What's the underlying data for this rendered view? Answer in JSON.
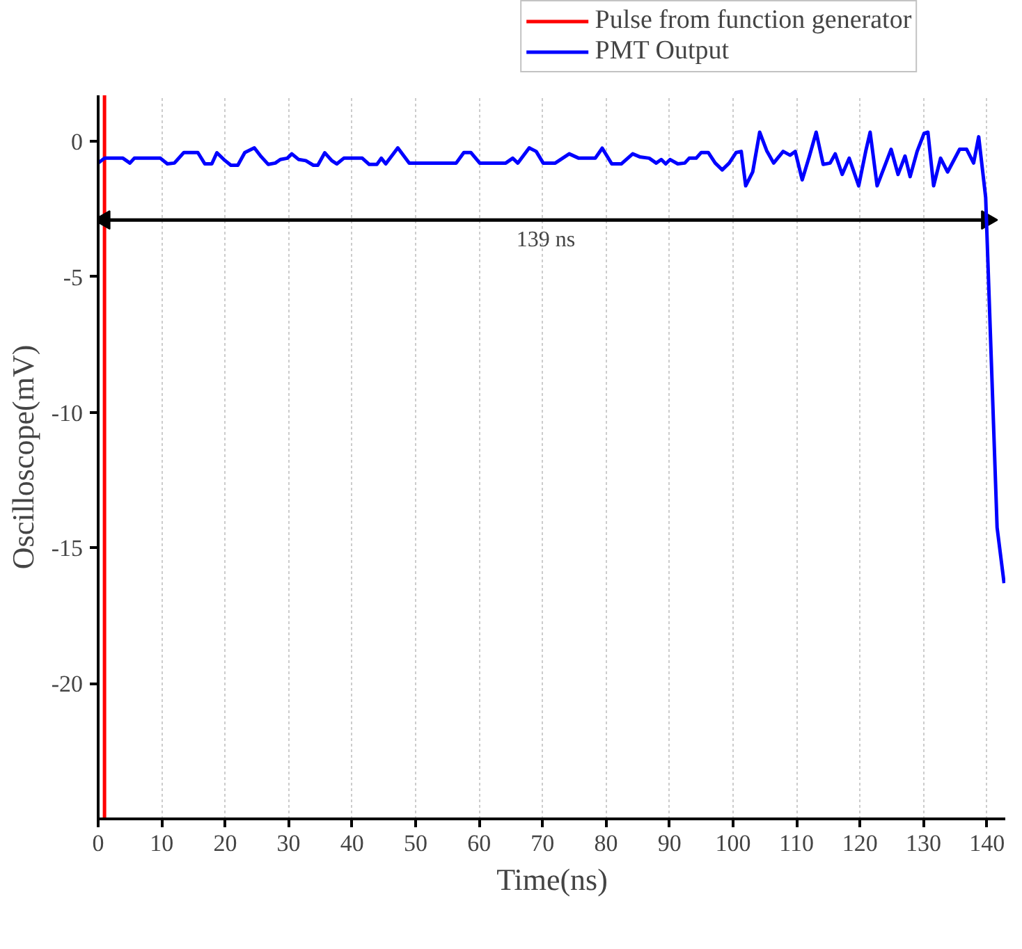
{
  "chart_data": {
    "type": "line",
    "xlabel": "Time(ns)",
    "ylabel": "Oscilloscope(mV)",
    "xlim": [
      0,
      143
    ],
    "ylim": [
      -25,
      1.7
    ],
    "xticks": [
      0,
      10,
      20,
      30,
      40,
      50,
      60,
      70,
      80,
      90,
      100,
      110,
      120,
      130,
      140
    ],
    "yticks": [
      0,
      -5,
      -10,
      -15,
      -20
    ],
    "grid": "x",
    "legend": "top right",
    "line_style": "solid",
    "marker": "none",
    "series": [
      {
        "name": "Pulse from function generator",
        "color": "#ff0000",
        "x": [
          1,
          1
        ],
        "values": [
          -25,
          1.7
        ]
      },
      {
        "color": "#000000",
        "x": [
          1,
          140
        ],
        "values": [
          -2.9,
          -2.9
        ],
        "marker": "triangle"
      },
      {
        "name": "PMT Output",
        "color": "#0000ff",
        "x": [
          0,
          1.0,
          3.9,
          5.0,
          5.7,
          9.8,
          10.9,
          12.0,
          13.5,
          15.7,
          16.8,
          17.9,
          18.7,
          19.8,
          20.9,
          22.0,
          23.1,
          24.6,
          25.7,
          26.8,
          27.9,
          28.7,
          29.8,
          30.5,
          31.6,
          32.7,
          33.9,
          34.6,
          35.7,
          36.8,
          37.6,
          38.7,
          41.6,
          42.7,
          43.9,
          44.6,
          45.3,
          47.2,
          49.0,
          56.4,
          57.6,
          58.7,
          60.1,
          64.2,
          65.3,
          66.1,
          67.9,
          69.0,
          70.1,
          72.0,
          74.2,
          75.7,
          78.3,
          79.4,
          80.9,
          82.4,
          84.2,
          85.3,
          86.8,
          87.9,
          88.7,
          89.4,
          90.1,
          91.3,
          92.4,
          93.1,
          94.2,
          95.0,
          96.1,
          97.2,
          98.3,
          99.4,
          100.5,
          101.3,
          102.0,
          103.1,
          104.2,
          105.3,
          106.4,
          107.9,
          109.0,
          109.8,
          110.9,
          112.0,
          113.1,
          114.2,
          115.3,
          116.1,
          117.2,
          118.3,
          119.8,
          120.9,
          121.6,
          122.7,
          123.8,
          124.9,
          126.0,
          127.1,
          127.9,
          129.0,
          130.1,
          130.7,
          131.6,
          132.7,
          133.8,
          135.7,
          136.8,
          137.9,
          138.7,
          139.8,
          141.6,
          142.7
        ],
        "values": [
          -0.8,
          -0.62,
          -0.62,
          -0.8,
          -0.62,
          -0.62,
          -0.83,
          -0.8,
          -0.41,
          -0.41,
          -0.83,
          -0.83,
          -0.42,
          -0.67,
          -0.88,
          -0.88,
          -0.41,
          -0.24,
          -0.57,
          -0.85,
          -0.8,
          -0.67,
          -0.62,
          -0.46,
          -0.67,
          -0.71,
          -0.88,
          -0.88,
          -0.42,
          -0.71,
          -0.83,
          -0.62,
          -0.62,
          -0.85,
          -0.85,
          -0.62,
          -0.83,
          -0.24,
          -0.8,
          -0.8,
          -0.41,
          -0.41,
          -0.8,
          -0.8,
          -0.62,
          -0.8,
          -0.24,
          -0.37,
          -0.8,
          -0.8,
          -0.46,
          -0.62,
          -0.62,
          -0.25,
          -0.83,
          -0.83,
          -0.46,
          -0.57,
          -0.62,
          -0.8,
          -0.67,
          -0.83,
          -0.67,
          -0.83,
          -0.8,
          -0.62,
          -0.62,
          -0.41,
          -0.41,
          -0.8,
          -1.05,
          -0.8,
          -0.41,
          -0.37,
          -1.64,
          -1.13,
          0.34,
          -0.34,
          -0.8,
          -0.37,
          -0.51,
          -0.37,
          -1.42,
          -0.57,
          0.34,
          -0.85,
          -0.8,
          -0.46,
          -1.22,
          -0.62,
          -1.64,
          -0.37,
          0.34,
          -1.64,
          -0.97,
          -0.29,
          -1.22,
          -0.54,
          -1.3,
          -0.37,
          0.3,
          0.34,
          -1.64,
          -0.62,
          -1.13,
          -0.29,
          -0.29,
          -0.8,
          0.17,
          -2.07,
          -14.25,
          -16.3
        ]
      }
    ],
    "annotations": [
      {
        "text": "139 ns",
        "x": 70.5,
        "y": -2.9
      }
    ]
  }
}
